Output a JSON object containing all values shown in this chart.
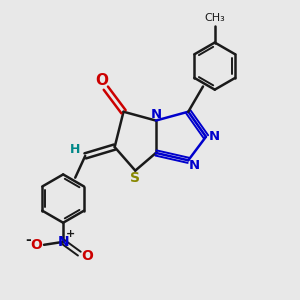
{
  "bg_color": "#e8e8e8",
  "bond_color": "#1a1a1a",
  "N_color": "#0000cc",
  "S_color": "#888800",
  "O_color": "#cc0000",
  "H_color": "#008888",
  "figsize": [
    3.0,
    3.0
  ],
  "dpi": 100,
  "xlim": [
    0,
    10
  ],
  "ylim": [
    0,
    10
  ]
}
